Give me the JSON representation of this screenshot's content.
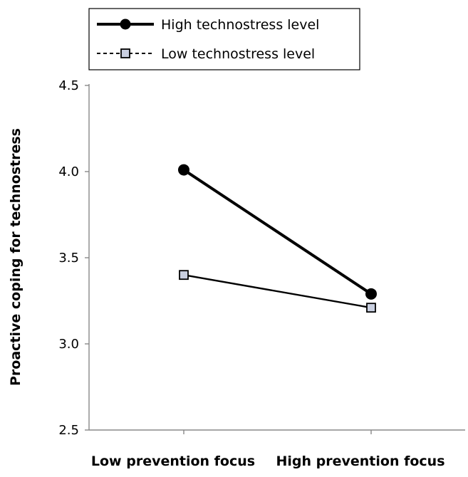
{
  "chart_data": {
    "type": "line",
    "title": "",
    "xlabel": "",
    "ylabel": "Proactive coping for technostress",
    "categories": [
      "Low prevention focus",
      "High prevention focus"
    ],
    "ylim": [
      2.5,
      4.5
    ],
    "yticks": [
      "2.5",
      "3.0",
      "3.5",
      "4.0",
      "4.5"
    ],
    "ytick_values": [
      2.5,
      3.0,
      3.5,
      4.0,
      4.5
    ],
    "grid": false,
    "legend_position": "top-left",
    "series": [
      {
        "name": "High technostress level",
        "values": [
          4.01,
          3.29
        ],
        "marker": "circle",
        "line_style": "solid",
        "color": "#000000",
        "marker_fill": "#000000"
      },
      {
        "name": "Low technostress level",
        "values": [
          3.4,
          3.21
        ],
        "marker": "square",
        "line_style": "dashed",
        "color": "#000000",
        "marker_fill": "#c9cfe0"
      }
    ]
  }
}
